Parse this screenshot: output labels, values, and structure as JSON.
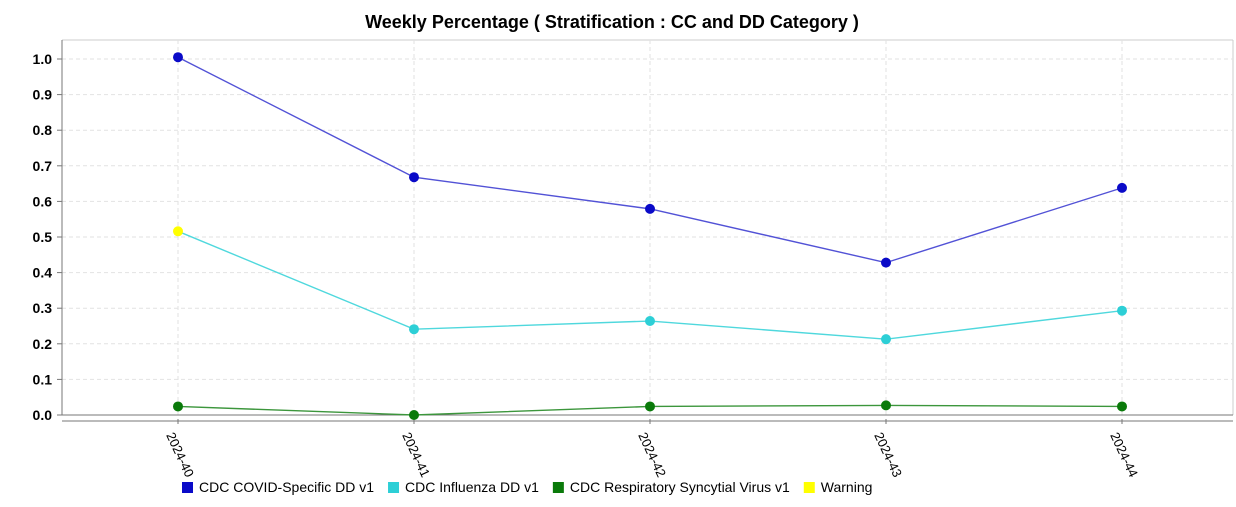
{
  "chart_data": {
    "type": "line",
    "title": "Weekly Percentage ( Stratification : CC and DD Category )",
    "xlabel": "",
    "ylabel": "",
    "categories": [
      "2024-40",
      "2024-41",
      "2024-42",
      "2024-43",
      "2024-44"
    ],
    "ylim": [
      0,
      1.0
    ],
    "yticks": [
      "0.0",
      "0.1",
      "0.2",
      "0.3",
      "0.4",
      "0.5",
      "0.6",
      "0.7",
      "0.8",
      "0.9",
      "1.0"
    ],
    "grid": true,
    "legend_position": "bottom",
    "series": [
      {
        "name": "CDC COVID-Specific DD v1",
        "color": "#0a0ac8",
        "line_color": "#5252d6",
        "values": [
          1.005,
          0.668,
          0.579,
          0.428,
          0.638
        ]
      },
      {
        "name": "CDC Influenza DD v1",
        "color": "#2dcfd6",
        "line_color": "#4fd8dd",
        "values": [
          0.516,
          0.241,
          0.264,
          0.213,
          0.293
        ]
      },
      {
        "name": "CDC Respiratory Syncytial Virus v1",
        "color": "#0a7a0a",
        "line_color": "#3c963c",
        "values": [
          0.024,
          0.0,
          0.024,
          0.027,
          0.024
        ]
      }
    ],
    "warning": {
      "name": "Warning",
      "color": "#ffff00",
      "points": [
        {
          "category": "2024-40",
          "series": "CDC Influenza DD v1"
        }
      ]
    }
  }
}
